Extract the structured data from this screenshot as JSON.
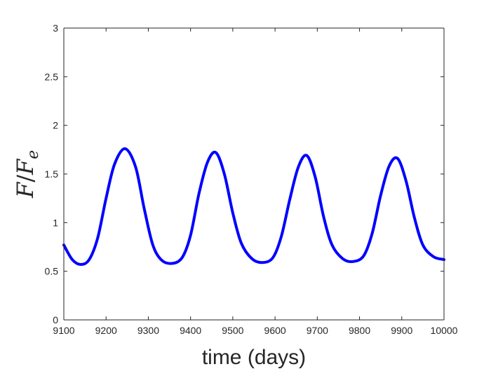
{
  "chart_data": {
    "type": "line",
    "xlabel": "time (days)",
    "ylabel": {
      "numerator": "F",
      "slash": "/",
      "denominator": "F",
      "subscript": "e"
    },
    "xlim": [
      9100,
      10000
    ],
    "ylim": [
      0,
      3
    ],
    "xticks": [
      "9100",
      "9200",
      "9300",
      "9400",
      "9500",
      "9600",
      "9700",
      "9800",
      "9900",
      "10000"
    ],
    "yticks": [
      "0",
      "0.5",
      "1",
      "1.5",
      "2",
      "2.5",
      "3"
    ],
    "grid": false,
    "series": [
      {
        "color": "#0000ff",
        "x": [
          9100,
          9120,
          9140,
          9160,
          9180,
          9200,
          9220,
          9245,
          9270,
          9290,
          9310,
          9330,
          9355,
          9380,
          9400,
          9420,
          9440,
          9460,
          9480,
          9500,
          9520,
          9545,
          9570,
          9595,
          9615,
          9635,
          9655,
          9675,
          9695,
          9715,
          9735,
          9760,
          9785,
          9810,
          9830,
          9850,
          9870,
          9890,
          9910,
          9930,
          9950,
          9975,
          10000
        ],
        "y": [
          0.77,
          0.62,
          0.57,
          0.62,
          0.84,
          1.25,
          1.6,
          1.76,
          1.57,
          1.15,
          0.78,
          0.62,
          0.58,
          0.64,
          0.87,
          1.3,
          1.62,
          1.72,
          1.5,
          1.1,
          0.79,
          0.63,
          0.59,
          0.64,
          0.86,
          1.24,
          1.57,
          1.69,
          1.47,
          1.06,
          0.77,
          0.63,
          0.6,
          0.66,
          0.89,
          1.28,
          1.58,
          1.66,
          1.43,
          1.05,
          0.77,
          0.65,
          0.62
        ]
      }
    ]
  }
}
